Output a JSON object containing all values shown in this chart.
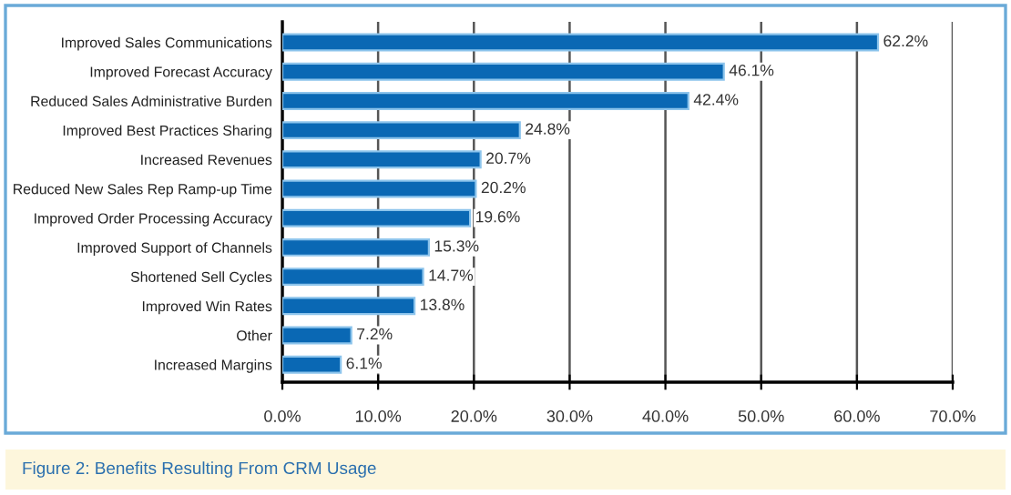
{
  "chart_data": {
    "type": "bar",
    "orientation": "horizontal",
    "title": "Figure 2: Benefits Resulting From CRM Usage",
    "categories": [
      "Improved Sales Communications",
      "Improved Forecast Accuracy",
      "Reduced Sales Administrative Burden",
      "Improved Best Practices Sharing",
      "Increased Revenues",
      "Reduced New Sales Rep Ramp-up Time",
      "Improved Order Processing Accuracy",
      "Improved Support of Channels",
      "Shortened Sell Cycles",
      "Improved Win Rates",
      "Other",
      "Increased Margins"
    ],
    "values": [
      62.2,
      46.1,
      42.4,
      24.8,
      20.7,
      20.2,
      19.6,
      15.3,
      14.7,
      13.8,
      7.2,
      6.1
    ],
    "value_labels": [
      "62.2%",
      "46.1%",
      "42.4%",
      "24.8%",
      "20.7%",
      "20.2%",
      "19.6%",
      "15.3%",
      "14.7%",
      "13.8%",
      "7.2%",
      "6.1%"
    ],
    "color": "#0a68b4",
    "xlim": [
      0,
      70
    ],
    "xticks": [
      {
        "value": 0,
        "label": "0.0%"
      },
      {
        "value": 10,
        "label": "10.0%"
      },
      {
        "value": 20,
        "label": "20.0%"
      },
      {
        "value": 30,
        "label": "30.0%"
      },
      {
        "value": 40,
        "label": "40.0%"
      },
      {
        "value": 50,
        "label": "50.0%"
      },
      {
        "value": 60,
        "label": "60.0%"
      },
      {
        "value": 70,
        "label": "70.0%"
      }
    ],
    "grid": "x"
  }
}
